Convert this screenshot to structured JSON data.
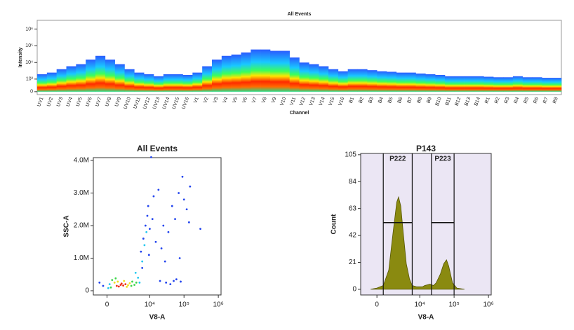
{
  "chart_data": [
    {
      "type": "spectrum",
      "title": "All Events",
      "xlabel": "Channel",
      "ylabel": "Intensity",
      "categories": [
        "UV1",
        "UV2",
        "UV3",
        "UV4",
        "UV5",
        "UV6",
        "UV7",
        "UV8",
        "UV9",
        "UV10",
        "UV11",
        "UV12",
        "UV13",
        "UV14",
        "UV15",
        "UV16",
        "V1",
        "V2",
        "V3",
        "V4",
        "V5",
        "V6",
        "V7",
        "V8",
        "V9",
        "V10",
        "V11",
        "V12",
        "V13",
        "V14",
        "V15",
        "V16",
        "B1",
        "B2",
        "B3",
        "B4",
        "B5",
        "B6",
        "B7",
        "B8",
        "B9",
        "B10",
        "B11",
        "B12",
        "B13",
        "B14",
        "R1",
        "R2",
        "R3",
        "R4",
        "R5",
        "R6",
        "R7",
        "R8"
      ],
      "values": [
        2000,
        2500,
        4000,
        6000,
        8000,
        15000,
        25000,
        15000,
        8000,
        4000,
        2500,
        2000,
        1500,
        2000,
        2000,
        1800,
        2500,
        6000,
        15000,
        25000,
        30000,
        40000,
        60000,
        60000,
        50000,
        50000,
        20000,
        10000,
        8000,
        6000,
        4000,
        3000,
        4000,
        4000,
        3500,
        3000,
        2800,
        2500,
        2500,
        2200,
        2000,
        1800,
        1500,
        1500,
        1500,
        1500,
        1400,
        1300,
        1300,
        1500,
        1300,
        1300,
        1200,
        1200
      ],
      "yscale": "biex",
      "ylim": [
        -150,
        3300000
      ],
      "yticks": [
        0,
        {
          "value": 1000,
          "label": "10³"
        },
        {
          "value": 10000,
          "label": "10⁴"
        },
        {
          "value": 100000,
          "label": "10⁵"
        },
        {
          "value": 1000000,
          "label": "10⁶"
        }
      ]
    },
    {
      "type": "scatter",
      "title": "All Events",
      "xlabel": "V8-A",
      "ylabel": "SSC-A",
      "xscale": "biex",
      "xlim": [
        -1200,
        1200000
      ],
      "ylim": [
        -130000,
        4086000
      ],
      "xticks": [
        0,
        {
          "value": 10000,
          "label": "10⁴"
        },
        {
          "value": 100000,
          "label": "10⁵"
        },
        {
          "value": 1000000,
          "label": "10⁶"
        }
      ],
      "yticks": [
        0,
        {
          "value": 1000000,
          "label": "1.0M"
        },
        {
          "value": 2000000,
          "label": "2.0M"
        },
        {
          "value": 3000000,
          "label": "3.0M"
        },
        {
          "value": 4000000,
          "label": "4.0M"
        }
      ],
      "series": [
        {
          "color": "#2244ee",
          "x": [
            5500,
            6500,
            7500,
            8500,
            9000,
            10000,
            12000,
            15000,
            20000,
            30000,
            40000,
            50000,
            60000,
            80000,
            100000,
            120000,
            150000,
            25000,
            35000,
            45000,
            70000,
            90000,
            11000,
            13000,
            9500,
            6000,
            18000,
            22000,
            28000,
            55000,
            -300,
            -600,
            75000,
            300000,
            140000
          ],
          "y": [
            1200000,
            1600000,
            2000000,
            2300000,
            2600000,
            1900000,
            2200000,
            1500000,
            300000,
            250000,
            200000,
            300000,
            350000,
            280000,
            2800000,
            2500000,
            3200000,
            2000000,
            1800000,
            2600000,
            3000000,
            3500000,
            4100000,
            2900000,
            1100000,
            700000,
            3100000,
            1300000,
            900000,
            2200000,
            150000,
            250000,
            1000000,
            1900000,
            2100000
          ]
        },
        {
          "color": "#22c8f0",
          "x": [
            200,
            4500,
            6000,
            7000,
            100,
            5000,
            8000,
            3800
          ],
          "y": [
            200000,
            400000,
            900000,
            1400000,
            80000,
            250000,
            1800000,
            550000
          ]
        },
        {
          "color": "#3cd84a",
          "x": [
            300,
            3000,
            400,
            2800,
            3500,
            700,
            4000
          ],
          "y": [
            100000,
            280000,
            330000,
            150000,
            180000,
            380000,
            250000
          ]
        },
        {
          "color": "#f0e020",
          "x": [
            600,
            2000,
            2500,
            900,
            1600,
            2200
          ],
          "y": [
            250000,
            120000,
            230000,
            280000,
            300000,
            170000
          ]
        },
        {
          "color": "#ee2a10",
          "x": [
            800,
            1200,
            1500,
            1000,
            1800,
            1300
          ],
          "y": [
            150000,
            180000,
            160000,
            130000,
            200000,
            220000
          ]
        }
      ]
    },
    {
      "type": "area",
      "title": "P143",
      "xlabel": "V8-A",
      "ylabel": "Count",
      "color": "#8a8a10",
      "xscale": "biex",
      "xlim": [
        -1500,
        1200000
      ],
      "ylim": [
        -4.4,
        106
      ],
      "xticks": [
        0,
        {
          "value": 10000,
          "label": "10⁴"
        },
        {
          "value": 100000,
          "label": "10⁵"
        },
        {
          "value": 1000000,
          "label": "10⁶"
        }
      ],
      "yticks": [
        0,
        21,
        42,
        63,
        84,
        105
      ],
      "x": [
        -500,
        0,
        500,
        1000,
        1500,
        2000,
        2300,
        2700,
        3200,
        4000,
        5000,
        6000,
        8000,
        12000,
        14000,
        20000,
        25000,
        30000,
        40000,
        50000,
        60000,
        70000,
        90000,
        120000,
        200000
      ],
      "values": [
        0,
        1,
        3,
        15,
        45,
        68,
        72,
        65,
        45,
        20,
        8,
        3,
        2,
        2,
        3,
        4,
        3,
        5,
        12,
        20,
        23,
        18,
        5,
        1,
        0
      ],
      "gates": [
        {
          "name": "P222",
          "range": [
            500,
            6000
          ],
          "level": 52
        },
        {
          "name": "P223",
          "range": [
            22000,
            100000
          ],
          "level": 52
        }
      ]
    }
  ]
}
